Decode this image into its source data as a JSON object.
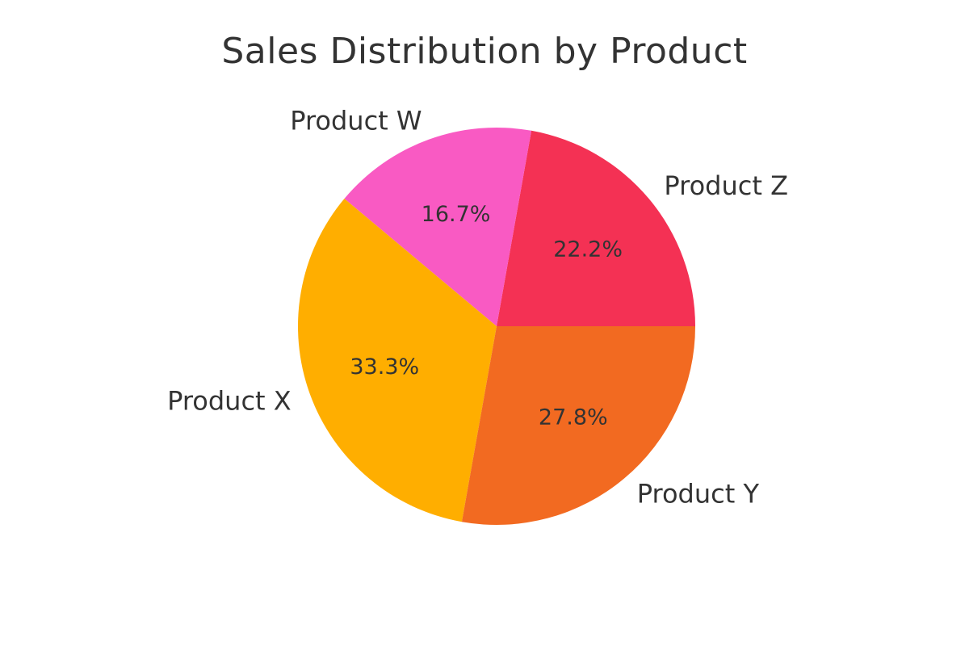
{
  "chart_data": {
    "type": "pie",
    "title": "Sales Distribution by Product",
    "start_angle_deg": 0,
    "direction": "counterclockwise",
    "slices": [
      {
        "label": "Product Z",
        "value": 22.2,
        "pct_label": "22.2%",
        "color": "#F43154"
      },
      {
        "label": "Product W",
        "value": 16.7,
        "pct_label": "16.7%",
        "color": "#F95AC3"
      },
      {
        "label": "Product X",
        "value": 33.3,
        "pct_label": "33.3%",
        "color": "#FFAE00"
      },
      {
        "label": "Product Y",
        "value": 27.8,
        "pct_label": "27.8%",
        "color": "#F26A21"
      }
    ]
  }
}
